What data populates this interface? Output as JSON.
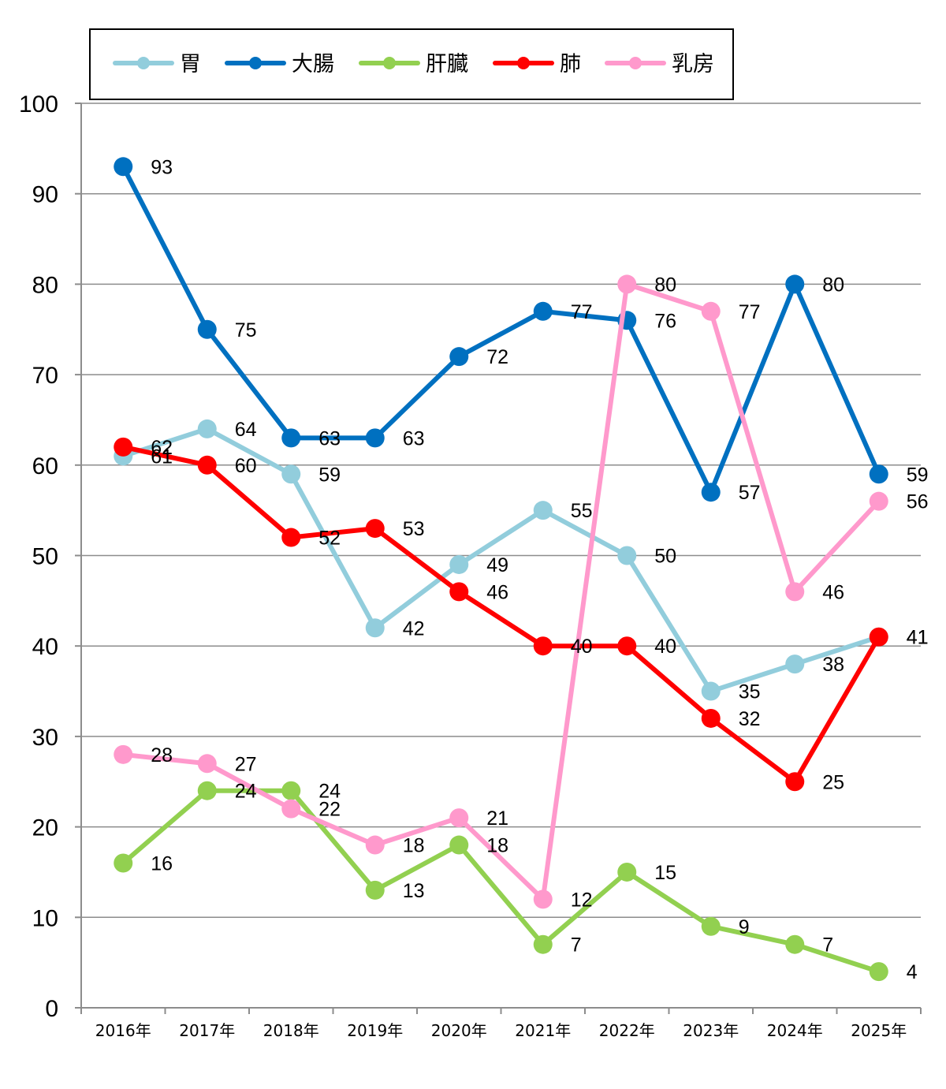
{
  "chart_data": {
    "type": "line",
    "title": "",
    "xlabel": "",
    "ylabel": "",
    "categories": [
      "2016年",
      "2017年",
      "2018年",
      "2019年",
      "2020年",
      "2021年",
      "2022年",
      "2023年",
      "2024年",
      "2025年"
    ],
    "ylim": [
      0,
      100
    ],
    "yticks": [
      0,
      10,
      20,
      30,
      40,
      50,
      60,
      70,
      80,
      90,
      100
    ],
    "grid": true,
    "legend_position": "top",
    "data_labels": true,
    "series": [
      {
        "name": "胃",
        "color": "#92cddc",
        "values": [
          61,
          64,
          59,
          42,
          49,
          55,
          50,
          35,
          38,
          41
        ]
      },
      {
        "name": "大腸",
        "color": "#0070c0",
        "values": [
          93,
          75,
          63,
          63,
          72,
          77,
          76,
          57,
          80,
          59
        ]
      },
      {
        "name": "肝臓",
        "color": "#92d050",
        "values": [
          16,
          24,
          24,
          13,
          18,
          7,
          15,
          9,
          7,
          4
        ]
      },
      {
        "name": "肺",
        "color": "#ff0000",
        "values": [
          62,
          60,
          52,
          53,
          46,
          40,
          40,
          32,
          25,
          41
        ]
      },
      {
        "name": "乳房",
        "color": "#ff99cc",
        "values": [
          28,
          27,
          22,
          18,
          21,
          12,
          80,
          77,
          46,
          56
        ]
      }
    ]
  }
}
